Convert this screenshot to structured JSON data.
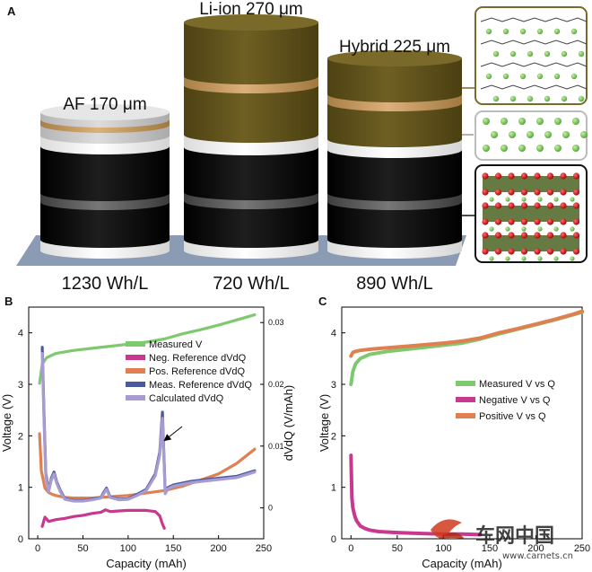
{
  "panel_a": {
    "label": "A",
    "cells": [
      {
        "label": "AF 170 μm",
        "density": "1230 Wh/L"
      },
      {
        "label": "Li-ion 270 μm",
        "density": "720 Wh/L"
      },
      {
        "label": "Hybrid 225 μm",
        "density": "890 Wh/L"
      }
    ],
    "colors": {
      "anode_brown": "#6b5a1e",
      "cathode_black": "#111111",
      "separator_white": "#f2f2f2",
      "current_collector_gold": "#c9a064",
      "base_slate": "#8c9bb4"
    }
  },
  "chart_data": [
    {
      "id": "B",
      "panel_label": "B",
      "type": "line",
      "xlabel": "Capacity (mAh)",
      "ylabel": "Voltage (V)",
      "y2label": "dVdQ (V/mAh)",
      "xlim": [
        -10,
        250
      ],
      "ylim": [
        0,
        4.5
      ],
      "y2lim": [
        -0.005,
        0.0325
      ],
      "xticks": [
        "0",
        "50",
        "100",
        "150",
        "200",
        "250"
      ],
      "yticks": [
        "0",
        "1",
        "2",
        "3",
        "4"
      ],
      "y2ticks": [
        "0",
        "0.01",
        "0.02",
        "0.03"
      ],
      "legend_position": "center-right",
      "annotation": "arrow pointing to dVdQ peak near 140 mAh",
      "series": [
        {
          "name": "Measured V",
          "color": "#7ec86e",
          "axis": "y",
          "x": [
            2,
            5,
            10,
            20,
            40,
            60,
            80,
            100,
            120,
            140,
            160,
            180,
            200,
            220,
            240
          ],
          "y": [
            3.02,
            3.4,
            3.52,
            3.6,
            3.66,
            3.7,
            3.74,
            3.78,
            3.82,
            3.88,
            3.98,
            4.06,
            4.15,
            4.25,
            4.35
          ]
        },
        {
          "name": "Neg. Reference dVdQ",
          "color": "#c8388f",
          "axis": "y2",
          "x": [
            5,
            8,
            12,
            20,
            30,
            40,
            50,
            60,
            70,
            75,
            80,
            90,
            100,
            110,
            120,
            130,
            135,
            138,
            140
          ],
          "y": [
            -0.003,
            -0.0015,
            -0.0022,
            -0.0019,
            -0.0017,
            -0.0014,
            -0.0012,
            -0.0009,
            -0.0007,
            -0.0003,
            -0.0006,
            -0.0005,
            -0.0004,
            -0.0004,
            -0.0004,
            -0.0006,
            -0.0013,
            -0.0026,
            -0.0033
          ]
        },
        {
          "name": "Pos. Reference dVdQ",
          "color": "#e07f4f",
          "axis": "y2",
          "x": [
            2,
            4,
            8,
            12,
            16,
            20,
            30,
            40,
            60,
            80,
            100,
            120,
            140,
            160,
            180,
            200,
            220,
            240
          ],
          "y": [
            0.012,
            0.006,
            0.0032,
            0.0025,
            0.0022,
            0.002,
            0.0017,
            0.0016,
            0.0016,
            0.0018,
            0.002,
            0.0024,
            0.0028,
            0.0035,
            0.0045,
            0.0055,
            0.0072,
            0.0095
          ]
        },
        {
          "name": "Meas. Reference dVdQ",
          "color": "#4b5aa0",
          "axis": "y2",
          "x": [
            5,
            7,
            9,
            12,
            15,
            18,
            21,
            25,
            30,
            40,
            50,
            60,
            70,
            73,
            76,
            80,
            90,
            100,
            110,
            120,
            130,
            135,
            138,
            141,
            144,
            150,
            170,
            200,
            220,
            240
          ],
          "y": [
            0.026,
            0.015,
            0.0055,
            0.0028,
            0.0048,
            0.0058,
            0.0042,
            0.0028,
            0.0015,
            0.0012,
            0.0012,
            0.0014,
            0.0017,
            0.0025,
            0.0032,
            0.0018,
            0.0014,
            0.0015,
            0.0022,
            0.003,
            0.0055,
            0.009,
            0.0155,
            0.0025,
            0.0033,
            0.0037,
            0.0043,
            0.0048,
            0.0051,
            0.006
          ]
        },
        {
          "name": "Calculated dVdQ",
          "color": "#a89bd0",
          "axis": "y2",
          "x": [
            5,
            7,
            9,
            12,
            15,
            18,
            21,
            25,
            30,
            40,
            50,
            60,
            70,
            73,
            76,
            80,
            90,
            100,
            110,
            120,
            130,
            135,
            138,
            141,
            144,
            150,
            170,
            200,
            220,
            240
          ],
          "y": [
            0.025,
            0.014,
            0.005,
            0.0026,
            0.0045,
            0.0055,
            0.004,
            0.0026,
            0.0014,
            0.0011,
            0.0011,
            0.0013,
            0.0016,
            0.0023,
            0.003,
            0.0017,
            0.0013,
            0.0014,
            0.002,
            0.0028,
            0.0052,
            0.0085,
            0.0145,
            0.0023,
            0.0031,
            0.0035,
            0.0041,
            0.0046,
            0.0049,
            0.0058
          ]
        }
      ]
    },
    {
      "id": "C",
      "panel_label": "C",
      "type": "line",
      "xlabel": "Capacity (mAh)",
      "ylabel": "Voltage (V)",
      "xlim": [
        -10,
        250
      ],
      "ylim": [
        0,
        4.5
      ],
      "xticks": [
        "0",
        "50",
        "100",
        "150",
        "200",
        "250"
      ],
      "yticks": [
        "0",
        "1",
        "2",
        "3",
        "4"
      ],
      "legend_position": "center-right",
      "series": [
        {
          "name": "Measured V vs Q",
          "color": "#7ec86e",
          "x": [
            0,
            2,
            5,
            10,
            20,
            40,
            60,
            80,
            100,
            120,
            140,
            160,
            180,
            200,
            220,
            240,
            250
          ],
          "y": [
            3.0,
            3.25,
            3.4,
            3.5,
            3.58,
            3.64,
            3.68,
            3.72,
            3.76,
            3.8,
            3.88,
            3.98,
            4.07,
            4.16,
            4.25,
            4.35,
            4.4
          ]
        },
        {
          "name": "Negative V vs Q",
          "color": "#c8388f",
          "x": [
            0,
            0.5,
            1,
            2,
            4,
            6,
            10,
            15,
            20,
            30,
            50,
            80,
            100,
            120,
            140
          ],
          "y": [
            1.62,
            1.2,
            0.8,
            0.6,
            0.45,
            0.35,
            0.25,
            0.2,
            0.17,
            0.14,
            0.12,
            0.1,
            0.09,
            0.09,
            0.08
          ]
        },
        {
          "name": "Positive V vs Q",
          "color": "#e07f4f",
          "x": [
            0,
            2,
            5,
            10,
            20,
            40,
            60,
            80,
            100,
            120,
            140,
            160,
            180,
            200,
            220,
            240,
            250
          ],
          "y": [
            3.55,
            3.62,
            3.64,
            3.66,
            3.68,
            3.71,
            3.74,
            3.77,
            3.8,
            3.84,
            3.9,
            4.0,
            4.08,
            4.17,
            4.26,
            4.36,
            4.42
          ]
        }
      ]
    }
  ],
  "watermark": {
    "text": "车网中国",
    "url": "www.carnets.cn"
  }
}
